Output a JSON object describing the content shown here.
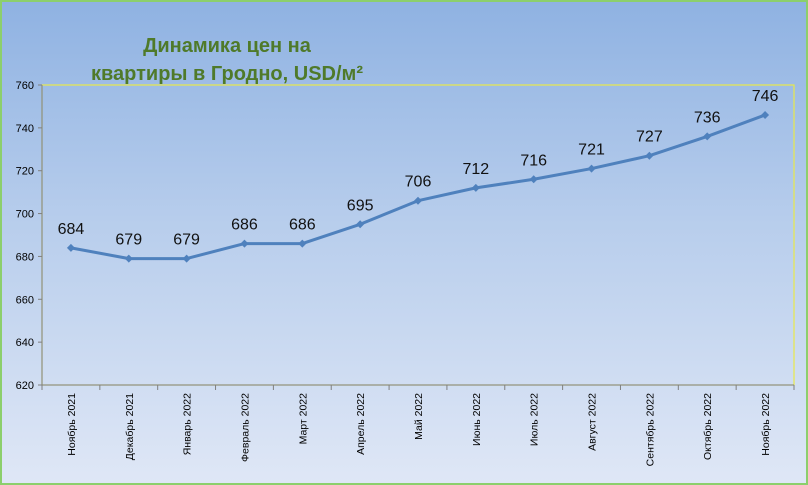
{
  "chart_data": {
    "type": "line",
    "title_line1": "Динамика цен на",
    "title_line2": "квартиры в Гродно, USD/м²",
    "categories": [
      "Ноябрь 2021",
      "Декабрь 2021",
      "Январь 2022",
      "Февраль 2022",
      "Март 2022",
      "Апрель 2022",
      "Май 2022",
      "Июнь 2022",
      "Июль 2022",
      "Август 2022",
      "Сентябрь 2022",
      "Октябрь 2022",
      "Ноябрь 2022"
    ],
    "values": [
      684,
      679,
      679,
      686,
      686,
      695,
      706,
      712,
      716,
      721,
      727,
      736,
      746
    ],
    "ylim": [
      620,
      760
    ],
    "yticks": [
      620,
      640,
      660,
      680,
      700,
      720,
      740,
      760
    ],
    "grid": false,
    "legend": "none",
    "colors": {
      "line": "#4f81bd",
      "plot_border": "#e8e84a",
      "title": "#4f7a2a"
    }
  }
}
